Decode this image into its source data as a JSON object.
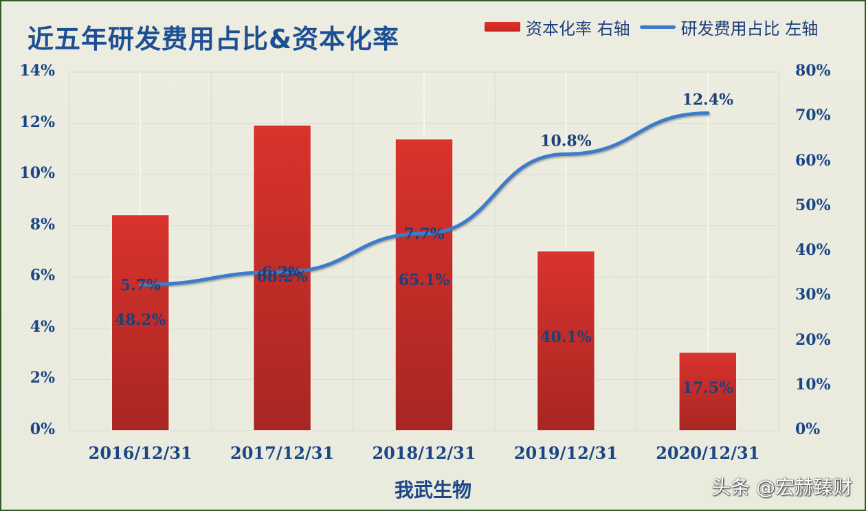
{
  "header": {
    "title": "近五年研发费用占比&资本化率",
    "legend": [
      {
        "label": "资本化率 右轴",
        "type": "bar",
        "color": "#d32f2a"
      },
      {
        "label": "研发费用占比 左轴",
        "type": "line",
        "color": "#3d7cc9"
      }
    ]
  },
  "axes": {
    "left_ticks": [
      "0%",
      "2%",
      "4%",
      "6%",
      "8%",
      "10%",
      "12%",
      "14%"
    ],
    "right_ticks": [
      "0%",
      "10%",
      "20%",
      "30%",
      "40%",
      "50%",
      "60%",
      "70%",
      "80%"
    ],
    "x_ticks": [
      "2016/12/31",
      "2017/12/31",
      "2018/12/31",
      "2019/12/31",
      "2020/12/31"
    ],
    "xlabel": "我武生物"
  },
  "watermark": "头条 @宏赫臻财",
  "chart_data": {
    "type": "bar",
    "title": "近五年研发费用占比&资本化率",
    "xlabel": "我武生物",
    "categories": [
      "2016/12/31",
      "2017/12/31",
      "2018/12/31",
      "2019/12/31",
      "2020/12/31"
    ],
    "series": [
      {
        "name": "资本化率 右轴",
        "type": "bar",
        "axis": "right",
        "color": "#d32f2a",
        "values": [
          48.2,
          68.2,
          65.1,
          40.1,
          17.5
        ],
        "labels": [
          "48.2%",
          "68.2%",
          "65.1%",
          "40.1%",
          "17.5%"
        ]
      },
      {
        "name": "研发费用占比 左轴",
        "type": "line",
        "axis": "left",
        "color": "#3d7cc9",
        "values": [
          5.7,
          6.2,
          7.7,
          10.8,
          12.4
        ],
        "labels": [
          "5.7%",
          "6.2%",
          "7.7%",
          "10.8%",
          "12.4%"
        ]
      }
    ],
    "ylim_left": [
      0,
      14
    ],
    "ylim_right": [
      0,
      80
    ],
    "left_ticks": [
      "0%",
      "2%",
      "4%",
      "6%",
      "8%",
      "10%",
      "12%",
      "14%"
    ],
    "right_ticks": [
      "0%",
      "10%",
      "20%",
      "30%",
      "40%",
      "50%",
      "60%",
      "70%",
      "80%"
    ],
    "grid": true,
    "legend_position": "top-right"
  }
}
